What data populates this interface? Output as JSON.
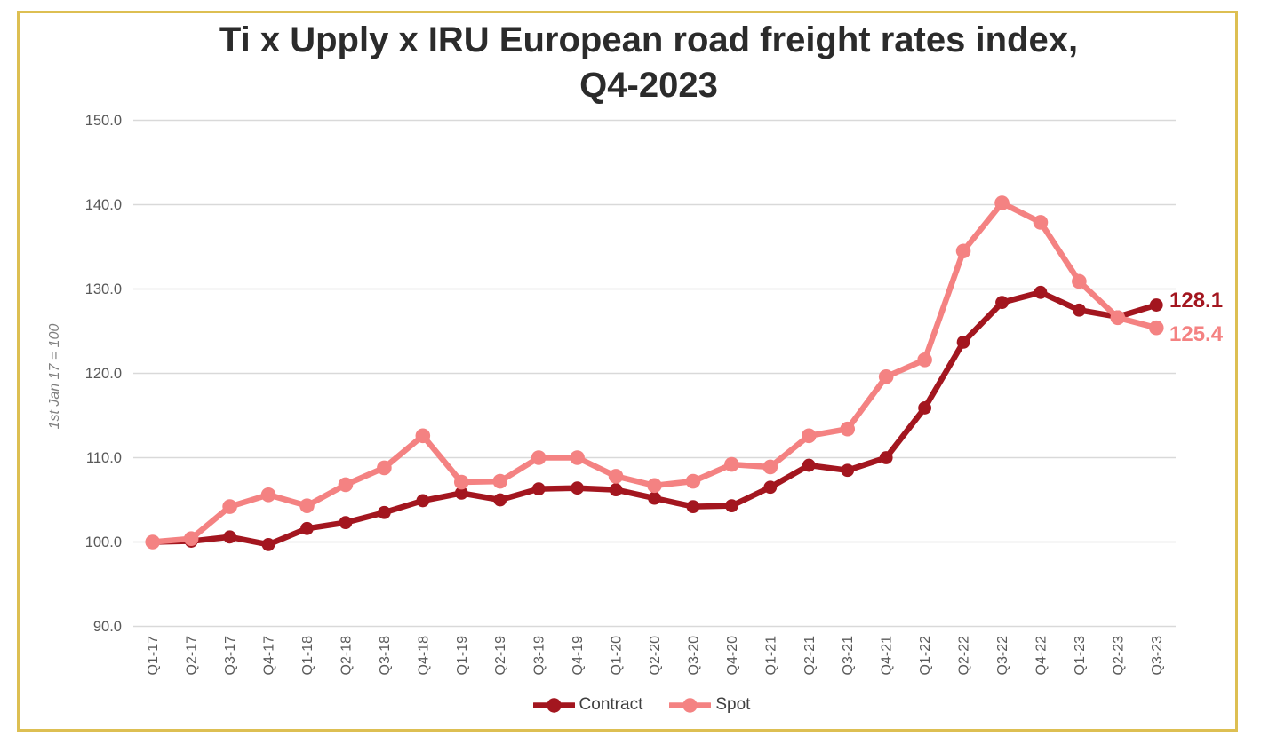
{
  "title": {
    "line1": "Ti x Upply x IRU European road freight rates index,",
    "line2": "Q4-2023"
  },
  "chart_data": {
    "type": "line",
    "title": "Ti x Upply x IRU European road freight rates index, Q4-2023",
    "xlabel": "",
    "ylabel": "1st Jan 17 = 100",
    "ylim": [
      90,
      150
    ],
    "yticks": [
      150,
      140,
      130,
      120,
      110,
      100,
      90
    ],
    "grid": true,
    "legend_position": "bottom",
    "categories": [
      "Q1-17",
      "Q2-17",
      "Q3-17",
      "Q4-17",
      "Q1-18",
      "Q2-18",
      "Q3-18",
      "Q4-18",
      "Q1-19",
      "Q2-19",
      "Q3-19",
      "Q4-19",
      "Q1-20",
      "Q2-20",
      "Q3-20",
      "Q4-20",
      "Q1-21",
      "Q2-21",
      "Q3-21",
      "Q4-21",
      "Q1-22",
      "Q2-22",
      "Q3-22",
      "Q4-22",
      "Q1-23",
      "Q2-23",
      "Q3-23"
    ],
    "series": [
      {
        "name": "Contract",
        "color": "#a3161f",
        "end_label": "128.1",
        "values": [
          100.0,
          100.1,
          100.6,
          99.7,
          101.6,
          102.3,
          103.5,
          104.9,
          105.8,
          105.0,
          106.3,
          106.4,
          106.2,
          105.2,
          104.2,
          104.3,
          106.5,
          109.1,
          108.5,
          110.0,
          115.9,
          123.7,
          128.4,
          129.6,
          127.5,
          126.7,
          128.1
        ]
      },
      {
        "name": "Spot",
        "color": "#f48282",
        "end_label": "125.4",
        "values": [
          100.0,
          100.4,
          104.2,
          105.6,
          104.3,
          106.8,
          108.8,
          112.6,
          107.1,
          107.2,
          110.0,
          110.0,
          107.8,
          106.7,
          107.2,
          109.2,
          108.9,
          112.6,
          113.4,
          119.6,
          121.6,
          134.5,
          140.2,
          137.9,
          130.9,
          126.6,
          125.4
        ]
      }
    ]
  },
  "colors": {
    "frame_border": "#ddbf52",
    "gridline": "#d9d9d9",
    "tick_text": "#595959",
    "title_text": "#2b2b2b",
    "legend_text": "#3f3f3f",
    "axis_title_text": "#7f7f7f",
    "background": "#ffffff"
  }
}
